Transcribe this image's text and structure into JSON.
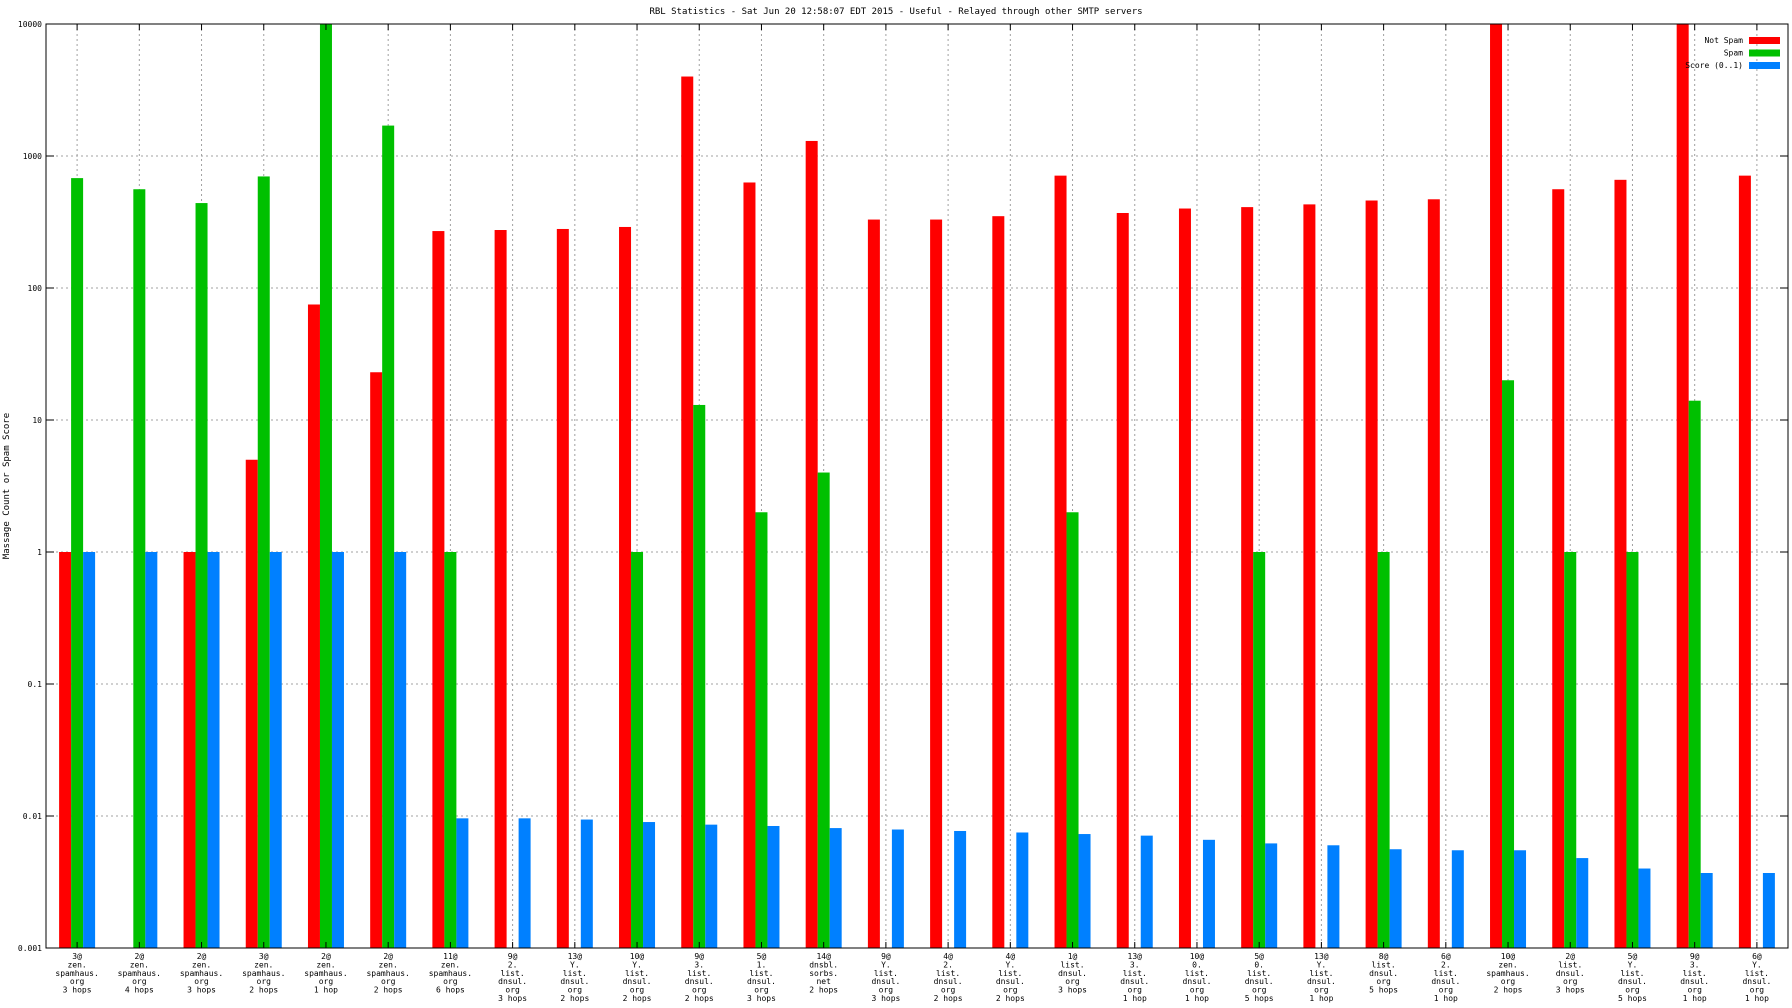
{
  "chart_data": {
    "type": "bar",
    "title": "RBL Statistics - Sat Jun 20 12:58:07 EDT 2015 - Useful - Relayed through other SMTP servers",
    "xlabel": "",
    "ylabel": "Massage Count or Spam Score",
    "yscale": "log",
    "ylim": [
      0.001,
      10000
    ],
    "y_ticks": [
      "0.001",
      "0.01",
      "0.1",
      "1",
      "10",
      "100",
      "1000",
      "10000"
    ],
    "grid": true,
    "legend_position": "top-right",
    "categories": [
      [
        "3@",
        "zen.",
        "spamhaus.",
        "org",
        "3 hops"
      ],
      [
        "2@",
        "zen.",
        "spamhaus.",
        "org",
        "4 hops"
      ],
      [
        "2@",
        "zen.",
        "spamhaus.",
        "org",
        "3 hops"
      ],
      [
        "3@",
        "zen.",
        "spamhaus.",
        "org",
        "2 hops"
      ],
      [
        "2@",
        "zen.",
        "spamhaus.",
        "org",
        "1 hop"
      ],
      [
        "2@",
        "zen.",
        "spamhaus.",
        "org",
        "2 hops"
      ],
      [
        "11@",
        "zen.",
        "spamhaus.",
        "org",
        "6 hops"
      ],
      [
        "9@",
        "2.",
        "list.",
        "dnsul.",
        "org",
        "3 hops"
      ],
      [
        "13@",
        "Y.",
        "list.",
        "dnsul.",
        "org",
        "2 hops"
      ],
      [
        "10@",
        "Y.",
        "list.",
        "dnsul.",
        "org",
        "2 hops"
      ],
      [
        "9@",
        "3.",
        "list.",
        "dnsul.",
        "org",
        "2 hops"
      ],
      [
        "5@",
        "1.",
        "list.",
        "dnsul.",
        "org",
        "3 hops"
      ],
      [
        "14@",
        "dnsbl.",
        "sorbs.",
        "net",
        "2 hops"
      ],
      [
        "9@",
        "Y.",
        "list.",
        "dnsul.",
        "org",
        "3 hops"
      ],
      [
        "4@",
        "2.",
        "list.",
        "dnsul.",
        "org",
        "2 hops"
      ],
      [
        "4@",
        "Y.",
        "list.",
        "dnsul.",
        "org",
        "2 hops"
      ],
      [
        "1@",
        "list.",
        "dnsul.",
        "org",
        "3 hops"
      ],
      [
        "13@",
        "3.",
        "list.",
        "dnsul.",
        "org",
        "1 hop"
      ],
      [
        "10@",
        "0.",
        "list.",
        "dnsul.",
        "org",
        "1 hop"
      ],
      [
        "5@",
        "0.",
        "list.",
        "dnsul.",
        "org",
        "5 hops"
      ],
      [
        "13@",
        "Y.",
        "list.",
        "dnsul.",
        "org",
        "1 hop"
      ],
      [
        "8@",
        "list.",
        "dnsul.",
        "org",
        "5 hops"
      ],
      [
        "6@",
        "2.",
        "list.",
        "dnsul.",
        "org",
        "1 hop"
      ],
      [
        "10@",
        "zen.",
        "spamhaus.",
        "org",
        "2 hops"
      ],
      [
        "2@",
        "list.",
        "dnsul.",
        "org",
        "3 hops"
      ],
      [
        "5@",
        "Y.",
        "list.",
        "dnsul.",
        "org",
        "5 hops"
      ],
      [
        "9@",
        "3.",
        "list.",
        "dnsul.",
        "org",
        "1 hop"
      ],
      [
        "6@",
        "Y.",
        "list.",
        "dnsul.",
        "org",
        "1 hop"
      ]
    ],
    "series": [
      {
        "name": "Not Spam",
        "color": "#ff0000",
        "values": [
          1,
          null,
          1,
          5,
          75,
          23,
          270,
          275,
          280,
          290,
          4000,
          630,
          1300,
          330,
          330,
          350,
          710,
          370,
          400,
          410,
          430,
          460,
          470,
          10000,
          560,
          660,
          10000,
          710
        ]
      },
      {
        "name": "Spam",
        "color": "#00c000",
        "values": [
          680,
          560,
          440,
          700,
          10000,
          1700,
          1,
          null,
          null,
          1,
          13,
          2,
          4,
          null,
          null,
          null,
          2,
          null,
          null,
          1,
          null,
          1,
          null,
          20,
          1,
          1,
          14,
          null
        ]
      },
      {
        "name": "Score (0..1)",
        "color": "#0080ff",
        "values": [
          1,
          1,
          1,
          1,
          1,
          1,
          0.0096,
          0.0096,
          0.0094,
          0.009,
          0.0086,
          0.0084,
          0.0081,
          0.0079,
          0.0077,
          0.0075,
          0.0073,
          0.0071,
          0.0066,
          0.0062,
          0.006,
          0.0056,
          0.0055,
          0.0055,
          0.0048,
          0.004,
          0.0037,
          0.0037
        ]
      }
    ]
  }
}
